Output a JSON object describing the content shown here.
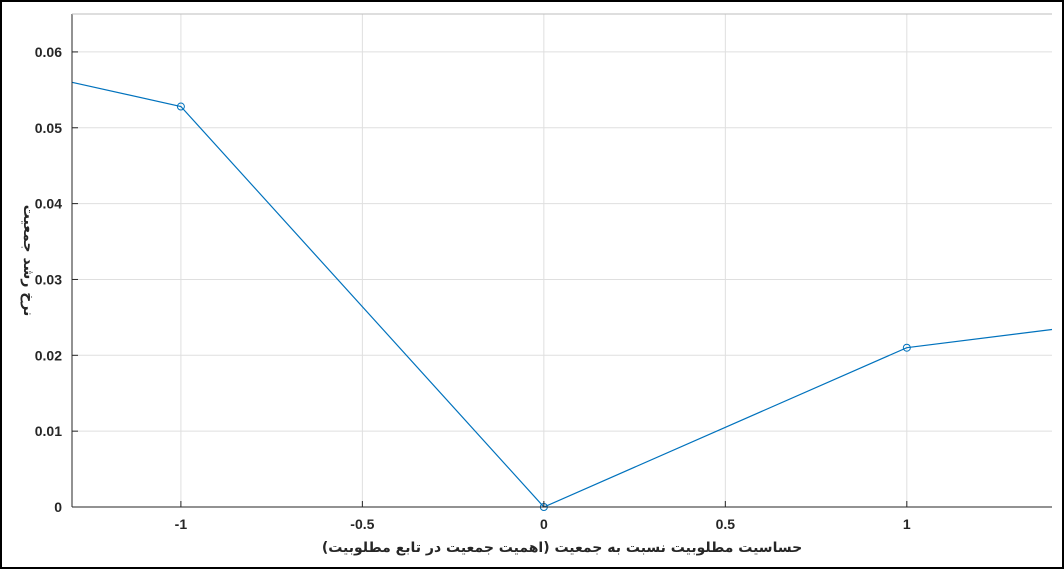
{
  "chart_data": {
    "type": "line",
    "x": [
      -1.3,
      -1,
      0,
      1,
      1.4
    ],
    "y": [
      0.056,
      0.0528,
      0.0,
      0.021,
      0.0234
    ],
    "markers": [
      {
        "x": -1,
        "y": 0.0528
      },
      {
        "x": 0,
        "y": 0.0
      },
      {
        "x": 1,
        "y": 0.021
      }
    ],
    "xlabel": "حساسیت مطلوبیت نسبت به جمعیت (اهمیت جمعیت در تابع مطلوبیت)",
    "ylabel": "نرخ رشد جمعیت",
    "xlim": [
      -1.3,
      1.4
    ],
    "ylim": [
      0,
      0.065
    ],
    "xticks": [
      -1,
      -0.5,
      0,
      0.5,
      1
    ],
    "xtick_labels": [
      "-1",
      "-0.5",
      "0",
      "0.5",
      "1"
    ],
    "yticks": [
      0,
      0.01,
      0.02,
      0.03,
      0.04,
      0.05,
      0.06
    ],
    "ytick_labels": [
      "0",
      "0.01",
      "0.02",
      "0.03",
      "0.04",
      "0.05",
      "0.06"
    ],
    "grid": true,
    "line_color": "#0072BD",
    "grid_color": "#dfdfdf",
    "axis_color": "#262626"
  }
}
